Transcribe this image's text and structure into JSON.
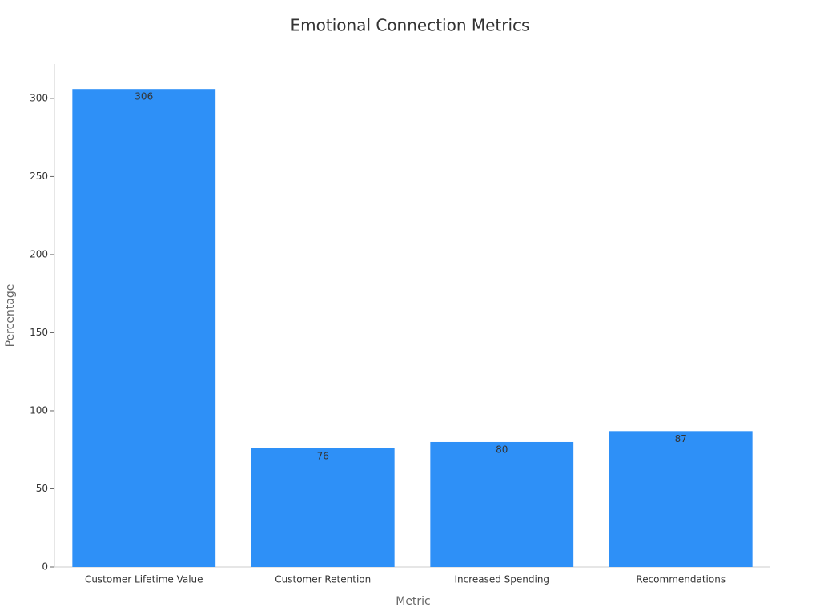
{
  "chart_data": {
    "type": "bar",
    "title": "Emotional Connection Metrics",
    "x_label": "Metric",
    "y_label": "Percentage",
    "categories": [
      "Customer Lifetime Value",
      "Customer Retention",
      "Increased Spending",
      "Recommendations"
    ],
    "values": [
      306,
      76,
      80,
      87
    ],
    "color": "#2e90f7",
    "ylim": [
      0,
      322
    ],
    "yticks": [
      0,
      50,
      100,
      150,
      200,
      250,
      300
    ],
    "grid": false,
    "data_labels": true
  }
}
